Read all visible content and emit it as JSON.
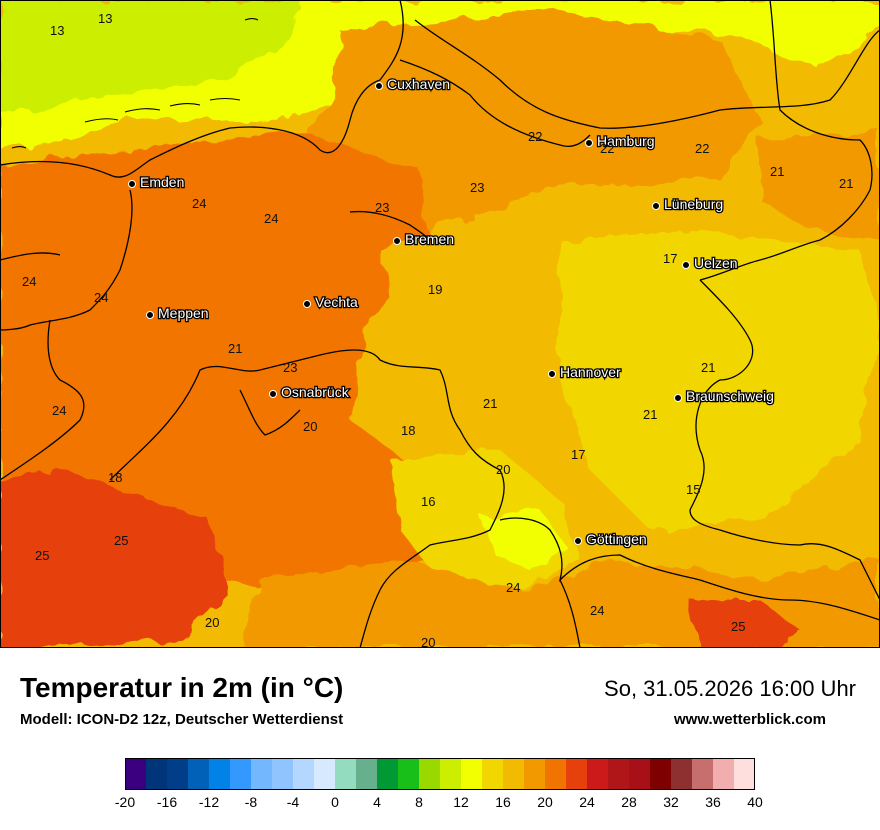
{
  "title": "Temperatur in 2m (in °C)",
  "subtitle": "Modell: ICON-D2 12z, Deutscher Wetterdienst",
  "valid_time": "So, 31.05.2026 16:00 Uhr",
  "website": "www.wetterblick.com",
  "cities": [
    {
      "name": "Cuxhaven"
    },
    {
      "name": "Hamburg"
    },
    {
      "name": "Emden"
    },
    {
      "name": "Bremen"
    },
    {
      "name": "Lüneburg"
    },
    {
      "name": "Uelzen"
    },
    {
      "name": "Vechta"
    },
    {
      "name": "Meppen"
    },
    {
      "name": "Hannover"
    },
    {
      "name": "Osnabrück"
    },
    {
      "name": "Braunschweig"
    },
    {
      "name": "Göttingen"
    }
  ],
  "values": [
    "13",
    "13",
    "22",
    "22",
    "22",
    "21",
    "21",
    "24",
    "24",
    "23",
    "23",
    "24",
    "24",
    "19",
    "17",
    "21",
    "23",
    "21",
    "21",
    "24",
    "20",
    "18",
    "21",
    "20",
    "17",
    "15",
    "18",
    "16",
    "25",
    "25",
    "24",
    "24",
    "20",
    "20",
    "25"
  ],
  "colorscale": {
    "ticks": [
      "-20",
      "-16",
      "-12",
      "-8",
      "-4",
      "0",
      "4",
      "8",
      "12",
      "16",
      "20",
      "24",
      "28",
      "32",
      "36",
      "40"
    ],
    "colors": [
      "#3a007f",
      "#00357a",
      "#003e8a",
      "#0160b8",
      "#0182e6",
      "#3399ff",
      "#73b7ff",
      "#8fc4ff",
      "#b3d7ff",
      "#d6e9ff",
      "#93dcc0",
      "#66b08e",
      "#009933",
      "#19bf19",
      "#99d900",
      "#ccee00",
      "#f2ff00",
      "#f2d600",
      "#f2ba00",
      "#f29900",
      "#f27400",
      "#e6400d",
      "#cc1a1a",
      "#b01517",
      "#a61016",
      "#7f0000",
      "#8f3030",
      "#c76f6f",
      "#f2aeae",
      "#ffdede"
    ]
  }
}
